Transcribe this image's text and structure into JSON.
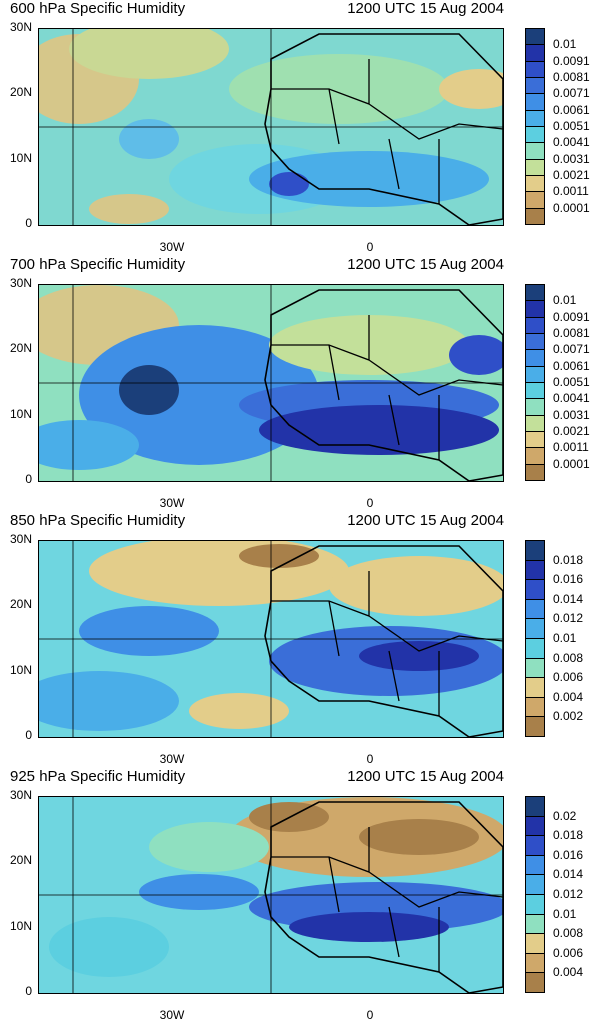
{
  "panels": [
    {
      "title": "600 hPa Specific Humidity",
      "date": "1200 UTC 15 Aug 2004",
      "legend": [
        "0.01",
        "0.0091",
        "0.0081",
        "0.0071",
        "0.0061",
        "0.0051",
        "0.0041",
        "0.0031",
        "0.0021",
        "0.0011",
        "0.0001"
      ]
    },
    {
      "title": "700 hPa Specific Humidity",
      "date": "1200 UTC 15 Aug 2004",
      "legend": [
        "0.01",
        "0.0091",
        "0.0081",
        "0.0071",
        "0.0061",
        "0.0051",
        "0.0041",
        "0.0031",
        "0.0021",
        "0.0011",
        "0.0001"
      ]
    },
    {
      "title": "850 hPa Specific Humidity",
      "date": "1200 UTC 15 Aug 2004",
      "legend": [
        "0.018",
        "0.016",
        "0.014",
        "0.012",
        "0.01",
        "0.008",
        "0.006",
        "0.004",
        "0.002"
      ]
    },
    {
      "title": "925 hPa Specific Humidity",
      "date": "1200 UTC 15 Aug 2004",
      "legend": [
        "0.02",
        "0.018",
        "0.016",
        "0.014",
        "0.012",
        "0.01",
        "0.008",
        "0.006",
        "0.004"
      ]
    }
  ],
  "axes": {
    "lat_labels": [
      "30N",
      "20N",
      "10N",
      "0"
    ],
    "lon_labels": [
      "30W",
      "0"
    ]
  },
  "colors": {
    "scale": [
      "#1b3f7a",
      "#2233a8",
      "#2f4fc8",
      "#3a6ed8",
      "#3f8fe6",
      "#4aaee8",
      "#5ccfe0",
      "#8fe0c0",
      "#c3e09a",
      "#e3cd8a",
      "#cfa86a",
      "#a8804a"
    ]
  }
}
